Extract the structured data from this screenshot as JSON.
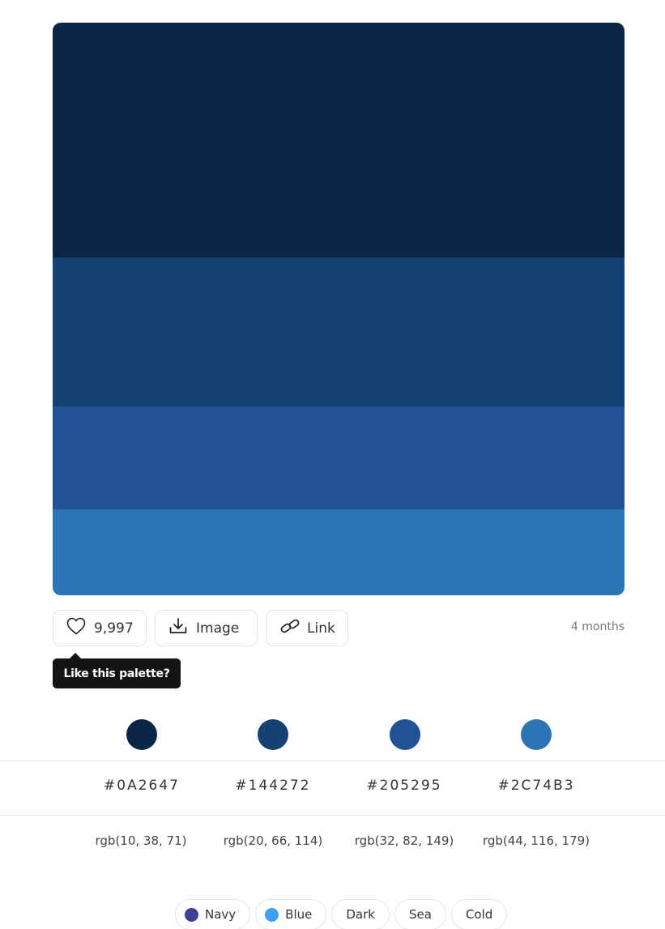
{
  "palette": {
    "colors": [
      {
        "hex": "#0A2647",
        "rgb": "rgb(10, 38, 71)"
      },
      {
        "hex": "#144272",
        "rgb": "rgb(20, 66, 114)"
      },
      {
        "hex": "#205295",
        "rgb": "rgb(32, 82, 149)"
      },
      {
        "hex": "#2C74B3",
        "rgb": "rgb(44, 116, 179)"
      }
    ]
  },
  "actions": {
    "likes": "9,997",
    "image_label": "Image",
    "link_label": "Link",
    "age": "4 months"
  },
  "tooltip": {
    "text": "Like this palette?"
  },
  "tags": [
    {
      "label": "Navy",
      "color": "#3F3F96"
    },
    {
      "label": "Blue",
      "color": "#3FA0F5"
    },
    {
      "label": "Dark"
    },
    {
      "label": "Sea"
    },
    {
      "label": "Cold"
    }
  ],
  "icons": {
    "like": "heart-icon",
    "image": "download-icon",
    "link": "link-icon"
  }
}
